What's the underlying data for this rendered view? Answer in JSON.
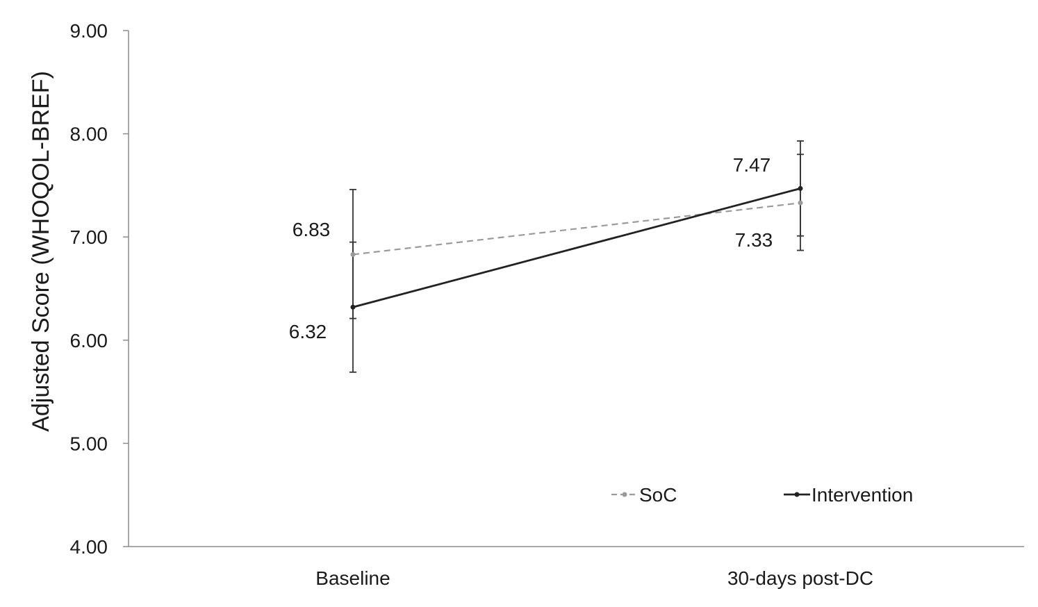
{
  "chart_data": {
    "type": "line",
    "title": "",
    "xlabel": "",
    "ylabel": "Adjusted Score (WHOQOL-BREF)",
    "categories": [
      "Baseline",
      "30-days post-DC"
    ],
    "ylim": [
      4.0,
      9.0
    ],
    "yticks": [
      "4.00",
      "5.00",
      "6.00",
      "7.00",
      "8.00",
      "9.00"
    ],
    "grid": false,
    "legend_position": "bottom-right",
    "series": [
      {
        "name": "SoC",
        "values": [
          6.83,
          7.33
        ],
        "error_low": [
          6.21,
          7.01
        ],
        "error_high": [
          6.95,
          7.8
        ],
        "color": "#9a9a9a",
        "dash": true
      },
      {
        "name": "Intervention",
        "values": [
          6.32,
          7.47
        ],
        "error_low": [
          5.69,
          6.87
        ],
        "error_high": [
          7.46,
          7.93
        ],
        "color": "#222222",
        "dash": false
      }
    ],
    "data_labels": [
      {
        "text": "6.83",
        "series": 0,
        "category": 0
      },
      {
        "text": "6.32",
        "series": 1,
        "category": 0
      },
      {
        "text": "7.47",
        "series": 1,
        "category": 1
      },
      {
        "text": "7.33",
        "series": 0,
        "category": 1
      }
    ]
  }
}
